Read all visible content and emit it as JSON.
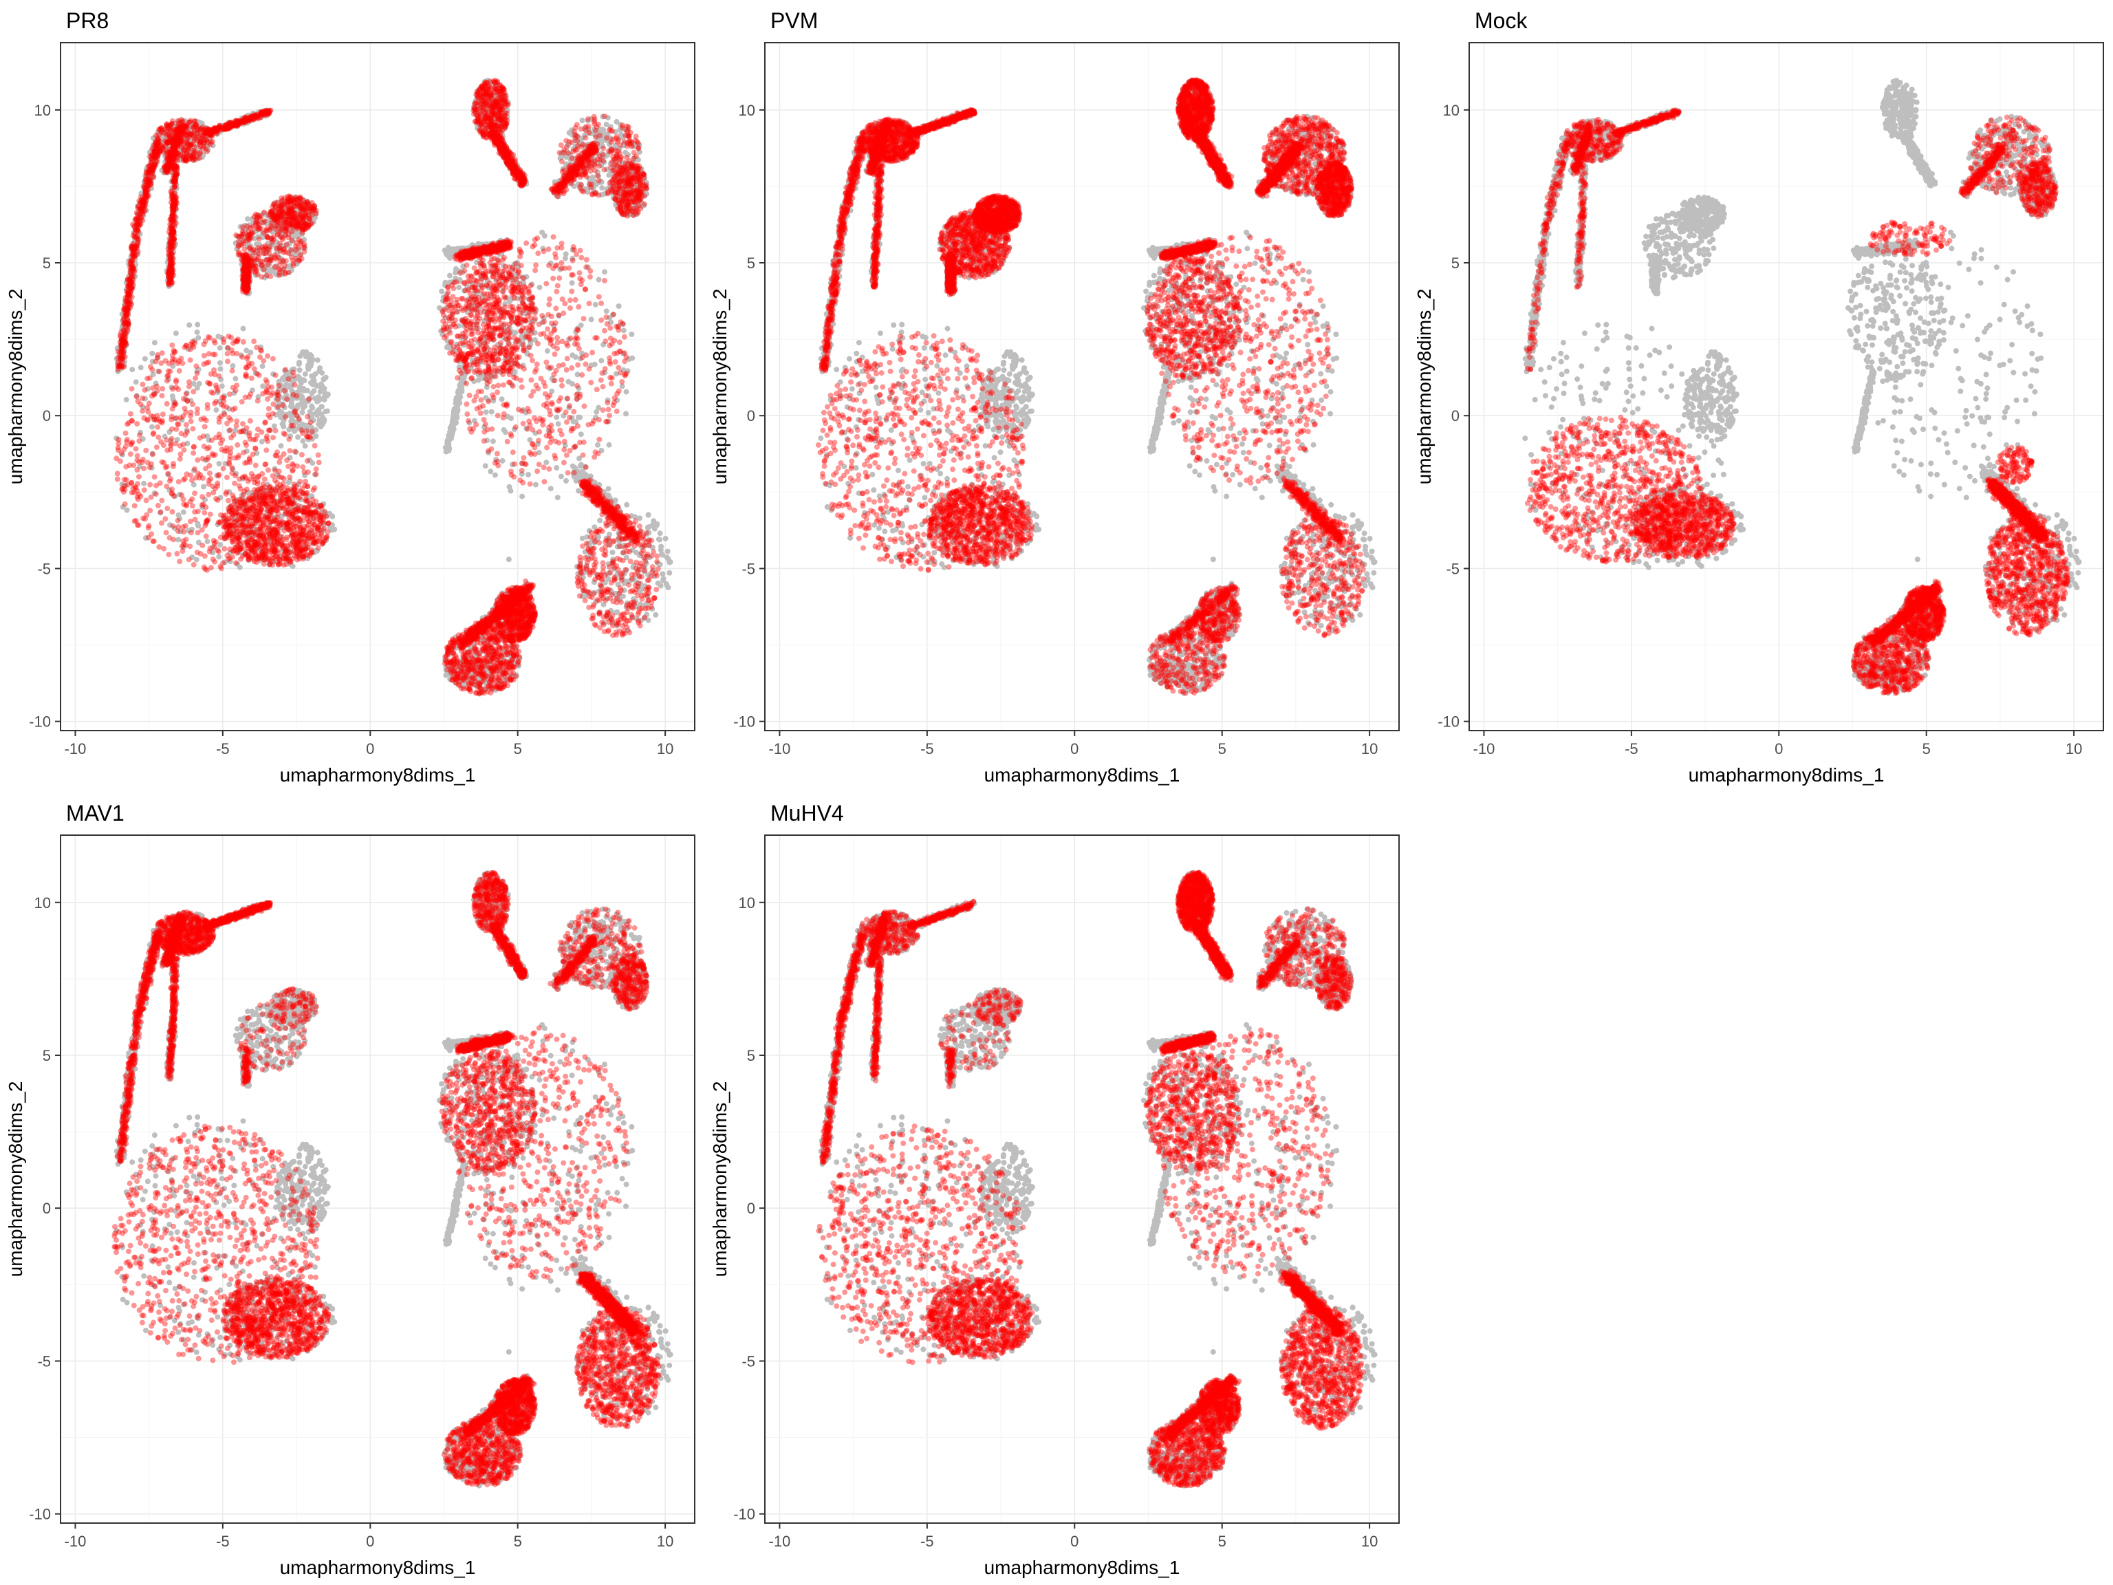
{
  "chart_data": [
    {
      "type": "scatter",
      "title": "PR8",
      "xlabel": "umapharmony8dims_1",
      "ylabel": "umapharmony8dims_2",
      "xlim": [
        -10.5,
        11
      ],
      "ylim": [
        -10.3,
        12.2
      ],
      "xticks": [
        -10,
        -5,
        0,
        5,
        10
      ],
      "yticks": [
        -10,
        -5,
        0,
        5,
        10
      ],
      "grid": true,
      "legend": "none",
      "background_color": "#BEBEBE",
      "highlight_color": "#FF0000",
      "highlight": [
        {
          "region": "left-main-blob",
          "density": "high"
        },
        {
          "region": "left-arc",
          "density": "medium"
        },
        {
          "region": "left-top-hook",
          "density": "medium"
        },
        {
          "region": "left-small-lobe",
          "density": "medium"
        },
        {
          "region": "right-top-lobe",
          "density": "medium"
        },
        {
          "region": "right-top-arm",
          "density": "medium"
        },
        {
          "region": "right-main-body",
          "density": "high"
        },
        {
          "region": "right-lower-lobe",
          "density": "medium"
        },
        {
          "region": "right-bottom-foot",
          "density": "high"
        }
      ]
    },
    {
      "type": "scatter",
      "title": "PVM",
      "xlabel": "umapharmony8dims_1",
      "ylabel": "umapharmony8dims_2",
      "xlim": [
        -10.5,
        11
      ],
      "ylim": [
        -10.3,
        12.2
      ],
      "xticks": [
        -10,
        -5,
        0,
        5,
        10
      ],
      "yticks": [
        -10,
        -5,
        0,
        5,
        10
      ],
      "grid": true,
      "legend": "none",
      "background_color": "#BEBEBE",
      "highlight_color": "#FF0000",
      "highlight": [
        {
          "region": "left-main-blob",
          "density": "high"
        },
        {
          "region": "left-arc",
          "density": "medium"
        },
        {
          "region": "left-top-hook",
          "density": "high"
        },
        {
          "region": "left-small-lobe",
          "density": "very-high"
        },
        {
          "region": "right-top-lobe",
          "density": "high"
        },
        {
          "region": "right-top-arm",
          "density": "high"
        },
        {
          "region": "right-main-body",
          "density": "high"
        },
        {
          "region": "right-lower-lobe",
          "density": "medium"
        },
        {
          "region": "right-bottom-foot",
          "density": "medium"
        }
      ]
    },
    {
      "type": "scatter",
      "title": "Mock",
      "xlabel": "umapharmony8dims_1",
      "ylabel": "umapharmony8dims_2",
      "xlim": [
        -10.5,
        11
      ],
      "ylim": [
        -10.3,
        12.2
      ],
      "xticks": [
        -10,
        -5,
        0,
        5,
        10
      ],
      "yticks": [
        -10,
        -5,
        0,
        5,
        10
      ],
      "grid": true,
      "legend": "none",
      "background_color": "#BEBEBE",
      "highlight_color": "#FF0000",
      "highlight": [
        {
          "region": "left-main-blob-lower",
          "density": "high"
        },
        {
          "region": "left-arc",
          "density": "low"
        },
        {
          "region": "left-top-hook",
          "density": "medium"
        },
        {
          "region": "right-top-arm",
          "density": "medium"
        },
        {
          "region": "right-main-edge",
          "density": "low"
        },
        {
          "region": "right-lower-lobe",
          "density": "high"
        },
        {
          "region": "right-bottom-foot",
          "density": "high"
        }
      ]
    },
    {
      "type": "scatter",
      "title": "MAV1",
      "xlabel": "umapharmony8dims_1",
      "ylabel": "umapharmony8dims_2",
      "xlim": [
        -10.5,
        11
      ],
      "ylim": [
        -10.3,
        12.2
      ],
      "xticks": [
        -10,
        -5,
        0,
        5,
        10
      ],
      "yticks": [
        -10,
        -5,
        0,
        5,
        10
      ],
      "grid": true,
      "legend": "none",
      "background_color": "#BEBEBE",
      "highlight_color": "#FF0000",
      "highlight": [
        {
          "region": "left-main-blob",
          "density": "high"
        },
        {
          "region": "left-arc",
          "density": "medium"
        },
        {
          "region": "left-top-hook",
          "density": "high"
        },
        {
          "region": "left-small-lobe",
          "density": "low"
        },
        {
          "region": "right-top-lobe",
          "density": "medium"
        },
        {
          "region": "right-top-arm",
          "density": "medium"
        },
        {
          "region": "right-main-body",
          "density": "high"
        },
        {
          "region": "right-lower-lobe",
          "density": "high"
        },
        {
          "region": "right-bottom-foot",
          "density": "high"
        }
      ]
    },
    {
      "type": "scatter",
      "title": "MuHV4",
      "xlabel": "umapharmony8dims_1",
      "ylabel": "umapharmony8dims_2",
      "xlim": [
        -10.5,
        11
      ],
      "ylim": [
        -10.3,
        12.2
      ],
      "xticks": [
        -10,
        -5,
        0,
        5,
        10
      ],
      "yticks": [
        -10,
        -5,
        0,
        5,
        10
      ],
      "grid": true,
      "legend": "none",
      "background_color": "#BEBEBE",
      "highlight_color": "#FF0000",
      "highlight": [
        {
          "region": "left-main-blob",
          "density": "high"
        },
        {
          "region": "left-arc",
          "density": "medium"
        },
        {
          "region": "left-top-hook",
          "density": "medium"
        },
        {
          "region": "left-small-lobe",
          "density": "low"
        },
        {
          "region": "right-top-lobe",
          "density": "high"
        },
        {
          "region": "right-top-arm",
          "density": "medium"
        },
        {
          "region": "right-main-body",
          "density": "high"
        },
        {
          "region": "right-lower-lobe",
          "density": "high"
        },
        {
          "region": "right-bottom-foot",
          "density": "high"
        }
      ]
    }
  ]
}
